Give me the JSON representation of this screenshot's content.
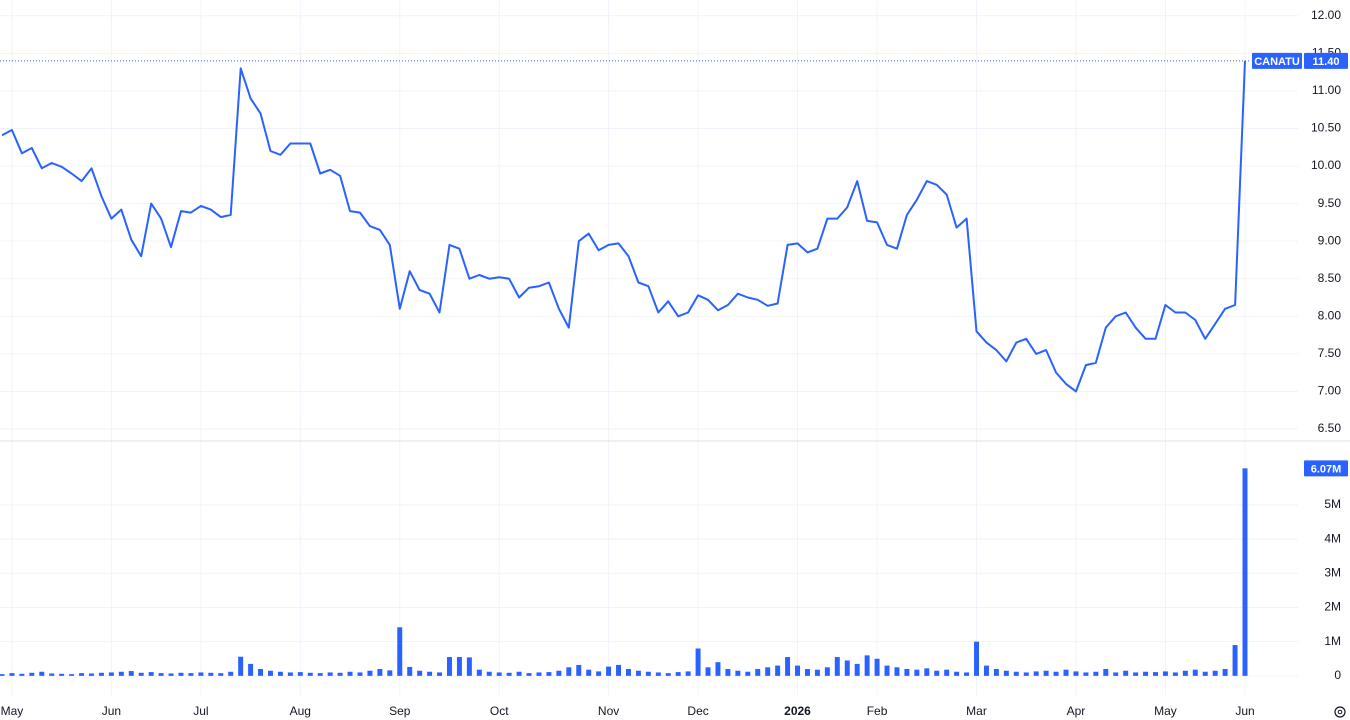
{
  "chart_data": [
    {
      "type": "line",
      "categories": [
        null,
        "May",
        null,
        null,
        null,
        null,
        null,
        null,
        null,
        null,
        null,
        "Jun",
        null,
        null,
        null,
        null,
        null,
        null,
        null,
        null,
        "Jul",
        null,
        null,
        null,
        null,
        null,
        null,
        null,
        null,
        null,
        "Aug",
        null,
        null,
        null,
        null,
        null,
        null,
        null,
        null,
        null,
        "Sep",
        null,
        null,
        null,
        null,
        null,
        null,
        null,
        null,
        null,
        "Oct",
        null,
        null,
        null,
        null,
        null,
        null,
        null,
        null,
        null,
        null,
        "Nov",
        null,
        null,
        null,
        null,
        null,
        null,
        null,
        null,
        "Dec",
        null,
        null,
        null,
        null,
        null,
        null,
        null,
        null,
        null,
        "2026",
        null,
        null,
        null,
        null,
        null,
        null,
        null,
        "Feb",
        null,
        null,
        null,
        null,
        null,
        null,
        null,
        null,
        null,
        "Mar",
        null,
        null,
        null,
        null,
        null,
        null,
        null,
        null,
        null,
        "Apr",
        null,
        null,
        null,
        null,
        null,
        null,
        null,
        null,
        "May",
        null,
        null,
        null,
        null,
        null,
        null,
        null,
        "Jun"
      ],
      "series": [
        {
          "name": "CANATU",
          "color": "#2962ff",
          "values": [
            10.41,
            10.48,
            10.17,
            10.24,
            9.97,
            10.04,
            9.99,
            9.9,
            9.8,
            9.97,
            9.6,
            9.3,
            9.42,
            9.02,
            8.8,
            9.5,
            9.3,
            8.92,
            9.4,
            9.38,
            9.47,
            9.42,
            9.32,
            9.35,
            11.3,
            10.9,
            10.7,
            10.2,
            10.15,
            10.3,
            10.3,
            10.3,
            9.9,
            9.95,
            9.87,
            9.4,
            9.38,
            9.2,
            9.15,
            8.95,
            8.1,
            8.6,
            8.35,
            8.3,
            8.05,
            8.95,
            8.9,
            8.5,
            8.55,
            8.5,
            8.52,
            8.5,
            8.25,
            8.38,
            8.4,
            8.45,
            8.1,
            7.85,
            9.0,
            9.1,
            8.88,
            8.95,
            8.97,
            8.8,
            8.45,
            8.4,
            8.05,
            8.2,
            8.0,
            8.05,
            8.28,
            8.22,
            8.08,
            8.15,
            8.3,
            8.25,
            8.22,
            8.14,
            8.17,
            8.95,
            8.97,
            8.85,
            8.9,
            9.3,
            9.3,
            9.45,
            9.8,
            9.27,
            9.25,
            8.95,
            8.9,
            9.35,
            9.55,
            9.8,
            9.75,
            9.62,
            9.18,
            9.3,
            7.8,
            7.65,
            7.55,
            7.4,
            7.65,
            7.7,
            7.5,
            7.55,
            7.25,
            7.1,
            7.0,
            7.35,
            7.38,
            7.85,
            8.0,
            8.05,
            7.85,
            7.7,
            7.7,
            8.15,
            8.05,
            8.05,
            7.95,
            7.7,
            7.9,
            8.1,
            8.15,
            11.4
          ]
        }
      ],
      "last_value_label": "11.40",
      "ylim": [
        6.34,
        12.21
      ],
      "yticks": [
        {
          "value": 6.5,
          "label": "6.50"
        },
        {
          "value": 7,
          "label": "7.00"
        },
        {
          "value": 7.5,
          "label": "7.50"
        },
        {
          "value": 8,
          "label": "8.00"
        },
        {
          "value": 8.5,
          "label": "8.50"
        },
        {
          "value": 9,
          "label": "9.00"
        },
        {
          "value": 9.5,
          "label": "9.50"
        },
        {
          "value": 10,
          "label": "10.00"
        },
        {
          "value": 10.5,
          "label": "10.50"
        },
        {
          "value": 11,
          "label": "11.00"
        },
        {
          "value": 11.5,
          "label": "11.50"
        },
        {
          "value": 12,
          "label": "12.00"
        }
      ],
      "grid": true
    },
    {
      "type": "bar",
      "color": "#2962ff",
      "values": [
        50000,
        80000,
        60000,
        90000,
        120000,
        70000,
        60000,
        50000,
        80000,
        70000,
        90000,
        100000,
        120000,
        140000,
        90000,
        110000,
        80000,
        70000,
        90000,
        80000,
        100000,
        90000,
        80000,
        120000,
        560000,
        350000,
        200000,
        150000,
        120000,
        100000,
        110000,
        90000,
        80000,
        100000,
        90000,
        120000,
        100000,
        150000,
        200000,
        160000,
        1420000,
        260000,
        150000,
        120000,
        100000,
        550000,
        550000,
        540000,
        180000,
        120000,
        100000,
        90000,
        120000,
        80000,
        100000,
        110000,
        150000,
        250000,
        320000,
        180000,
        130000,
        270000,
        320000,
        200000,
        150000,
        120000,
        100000,
        80000,
        110000,
        130000,
        800000,
        250000,
        400000,
        200000,
        150000,
        120000,
        200000,
        250000,
        300000,
        550000,
        300000,
        200000,
        180000,
        250000,
        550000,
        450000,
        350000,
        600000,
        500000,
        300000,
        250000,
        200000,
        180000,
        220000,
        150000,
        180000,
        120000,
        100000,
        1000000,
        300000,
        200000,
        150000,
        120000,
        100000,
        130000,
        150000,
        120000,
        180000,
        130000,
        100000,
        120000,
        200000,
        100000,
        150000,
        100000,
        120000,
        110000,
        130000,
        100000,
        150000,
        180000,
        120000,
        150000,
        200000,
        900000,
        6070000
      ],
      "last_value_label": "6.07M",
      "ylim": [
        -560000,
        6870000
      ],
      "yticks": [
        0,
        {
          "value": 1000000,
          "label": "1M"
        },
        {
          "value": 2000000,
          "label": "2M"
        },
        {
          "value": 3000000,
          "label": "3M"
        },
        {
          "value": 4000000,
          "label": "4M"
        },
        {
          "value": 5000000,
          "label": "5M"
        }
      ],
      "grid": true
    }
  ]
}
